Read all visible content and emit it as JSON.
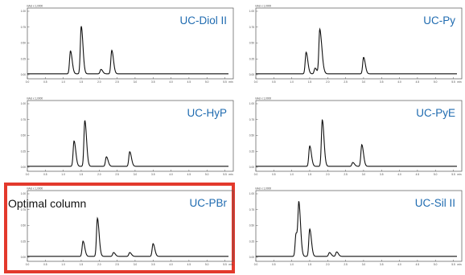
{
  "colors": {
    "label": "#1f6bb0",
    "trace": "#111111",
    "frame": "#555555",
    "highlight": "#e3392c"
  },
  "chart_data": [
    {
      "type": "line",
      "title": "UC-Diol II",
      "ylabel_unit": "mAU x 1,0000",
      "yticks": [
        "1.00",
        "0.75",
        "0.50",
        "0.25",
        "0.00"
      ],
      "xticks": [
        "0.0",
        "0.5",
        "1.0",
        "1.5",
        "2.0",
        "2.5",
        "3.0",
        "3.5",
        "4.0",
        "4.5",
        "5.0",
        "5.5",
        "min"
      ],
      "xlim": [
        0,
        5.6
      ],
      "ylim": [
        0,
        1.0
      ],
      "peaks": [
        {
          "t": 1.2,
          "h": 0.36
        },
        {
          "t": 1.5,
          "h": 0.75
        },
        {
          "t": 2.05,
          "h": 0.07
        },
        {
          "t": 2.35,
          "h": 0.37
        }
      ]
    },
    {
      "type": "line",
      "title": "UC-Py",
      "ylabel_unit": "mAU x 1,0000",
      "yticks": [
        "1.00",
        "0.75",
        "0.50",
        "0.25",
        "0.00"
      ],
      "xticks": [
        "0.0",
        "0.5",
        "1.0",
        "1.5",
        "2.0",
        "2.5",
        "3.0",
        "3.5",
        "4.0",
        "4.5",
        "5.0",
        "5.5",
        "min"
      ],
      "xlim": [
        0,
        5.6
      ],
      "ylim": [
        0,
        1.0
      ],
      "peaks": [
        {
          "t": 1.4,
          "h": 0.34
        },
        {
          "t": 1.65,
          "h": 0.09
        },
        {
          "t": 1.78,
          "h": 0.7
        },
        {
          "t": 1.85,
          "h": 0.1
        },
        {
          "t": 3.0,
          "h": 0.26
        }
      ]
    },
    {
      "type": "line",
      "title": "UC-HyP",
      "ylabel_unit": "mAU x 1,0000",
      "yticks": [
        "1.00",
        "0.75",
        "0.50",
        "0.25",
        "0.00"
      ],
      "xticks": [
        "0.0",
        "0.5",
        "1.0",
        "1.5",
        "2.0",
        "2.5",
        "3.0",
        "3.5",
        "4.0",
        "4.5",
        "5.0",
        "5.5",
        "min"
      ],
      "xlim": [
        0,
        5.6
      ],
      "ylim": [
        0,
        1.0
      ],
      "peaks": [
        {
          "t": 1.3,
          "h": 0.4
        },
        {
          "t": 1.6,
          "h": 0.72
        },
        {
          "t": 2.2,
          "h": 0.15
        },
        {
          "t": 2.85,
          "h": 0.23
        }
      ]
    },
    {
      "type": "line",
      "title": "UC-PyE",
      "ylabel_unit": "mAU x 1,0000",
      "yticks": [
        "1.00",
        "0.75",
        "0.50",
        "0.25",
        "0.00"
      ],
      "xticks": [
        "0.0",
        "0.5",
        "1.0",
        "1.5",
        "2.0",
        "2.5",
        "3.0",
        "3.5",
        "4.0",
        "4.5",
        "5.0",
        "5.5",
        "min"
      ],
      "xlim": [
        0,
        5.6
      ],
      "ylim": [
        0,
        1.0
      ],
      "peaks": [
        {
          "t": 1.5,
          "h": 0.32
        },
        {
          "t": 1.85,
          "h": 0.73
        },
        {
          "t": 2.7,
          "h": 0.06
        },
        {
          "t": 2.95,
          "h": 0.34
        }
      ]
    },
    {
      "type": "line",
      "title": "UC-PBr",
      "annotation": "Optimal column",
      "highlighted": true,
      "ylabel_unit": "mAU x 1,0000",
      "yticks": [
        "1.00",
        "0.75",
        "0.50",
        "0.25",
        "0.00"
      ],
      "xticks": [
        "0.0",
        "0.5",
        "1.0",
        "1.5",
        "2.0",
        "2.5",
        "3.0",
        "3.5",
        "4.0",
        "4.5",
        "5.0",
        "5.5",
        "min"
      ],
      "xlim": [
        0,
        5.6
      ],
      "ylim": [
        0,
        1.0
      ],
      "peaks": [
        {
          "t": 1.55,
          "h": 0.24
        },
        {
          "t": 1.95,
          "h": 0.6
        },
        {
          "t": 2.4,
          "h": 0.06
        },
        {
          "t": 2.85,
          "h": 0.06
        },
        {
          "t": 3.5,
          "h": 0.2
        }
      ]
    },
    {
      "type": "line",
      "title": "UC-Sil II",
      "ylabel_unit": "mAU x 1,0000",
      "yticks": [
        "1.00",
        "0.75",
        "0.50",
        "0.25",
        "0.00"
      ],
      "xticks": [
        "0.0",
        "0.5",
        "1.0",
        "1.5",
        "2.0",
        "2.5",
        "3.0",
        "3.5",
        "4.0",
        "4.5",
        "5.0",
        "5.5",
        "min"
      ],
      "xlim": [
        0,
        5.6
      ],
      "ylim": [
        0,
        1.0
      ],
      "peaks": [
        {
          "t": 1.12,
          "h": 0.36
        },
        {
          "t": 1.2,
          "h": 0.78
        },
        {
          "t": 1.5,
          "h": 0.43
        },
        {
          "t": 2.05,
          "h": 0.06
        },
        {
          "t": 2.25,
          "h": 0.07
        }
      ]
    }
  ]
}
